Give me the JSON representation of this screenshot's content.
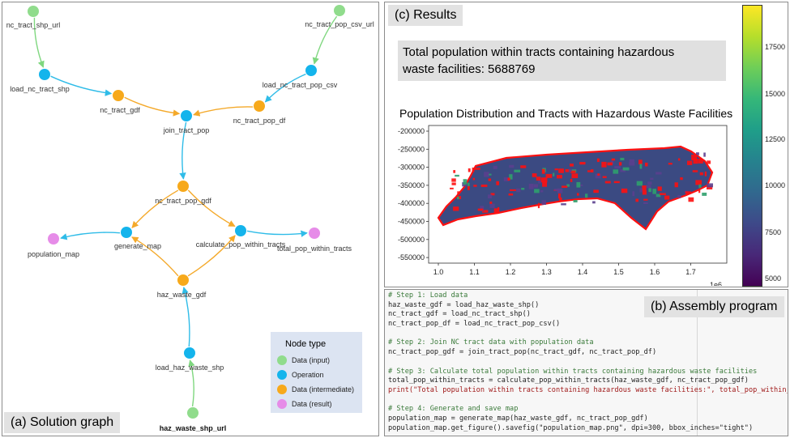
{
  "graph": {
    "caption": "(a) Solution graph",
    "nodes": [
      {
        "id": "nc_tract_shp_url",
        "label": "nc_tract_shp_url",
        "kind": "input"
      },
      {
        "id": "nc_tract_pop_csv_url",
        "label": "nc_tract_pop_csv_url",
        "kind": "input"
      },
      {
        "id": "load_nc_tract_shp",
        "label": "load_nc_tract_shp",
        "kind": "operation"
      },
      {
        "id": "load_nc_tract_pop_csv",
        "label": "load_nc_tract_pop_csv",
        "kind": "operation"
      },
      {
        "id": "nc_tract_gdf",
        "label": "nc_tract_gdf",
        "kind": "intermediate"
      },
      {
        "id": "nc_tract_pop_df",
        "label": "nc_tract_pop_df",
        "kind": "intermediate"
      },
      {
        "id": "join_tract_pop",
        "label": "join_tract_pop",
        "kind": "operation"
      },
      {
        "id": "nc_tract_pop_gdf",
        "label": "nc_tract_pop_gdf",
        "kind": "intermediate"
      },
      {
        "id": "generate_map",
        "label": "generate_map",
        "kind": "operation"
      },
      {
        "id": "calculate_pop_within_tracts",
        "label": "calculate_pop_within_tracts",
        "kind": "operation"
      },
      {
        "id": "population_map",
        "label": "population_map",
        "kind": "result"
      },
      {
        "id": "total_pop_within_tracts",
        "label": "total_pop_within_tracts",
        "kind": "result"
      },
      {
        "id": "haz_waste_gdf",
        "label": "haz_waste_gdf",
        "kind": "intermediate"
      },
      {
        "id": "load_haz_waste_shp",
        "label": "load_haz_waste_shp",
        "kind": "operation"
      },
      {
        "id": "haz_waste_shp_url",
        "label": "haz_waste_shp_url",
        "kind": "input"
      }
    ],
    "edges": [
      [
        "nc_tract_shp_url",
        "load_nc_tract_shp"
      ],
      [
        "nc_tract_pop_csv_url",
        "load_nc_tract_pop_csv"
      ],
      [
        "load_nc_tract_shp",
        "nc_tract_gdf"
      ],
      [
        "load_nc_tract_pop_csv",
        "nc_tract_pop_df"
      ],
      [
        "nc_tract_gdf",
        "join_tract_pop"
      ],
      [
        "nc_tract_pop_df",
        "join_tract_pop"
      ],
      [
        "join_tract_pop",
        "nc_tract_pop_gdf"
      ],
      [
        "nc_tract_pop_gdf",
        "generate_map"
      ],
      [
        "nc_tract_pop_gdf",
        "calculate_pop_within_tracts"
      ],
      [
        "generate_map",
        "population_map"
      ],
      [
        "calculate_pop_within_tracts",
        "total_pop_within_tracts"
      ],
      [
        "haz_waste_gdf",
        "generate_map"
      ],
      [
        "haz_waste_gdf",
        "calculate_pop_within_tracts"
      ],
      [
        "load_haz_waste_shp",
        "haz_waste_gdf"
      ],
      [
        "haz_waste_shp_url",
        "load_haz_waste_shp"
      ]
    ],
    "legend": {
      "title": "Node type",
      "items": [
        {
          "label": "Data (input)",
          "kind": "input"
        },
        {
          "label": "Operation",
          "kind": "operation"
        },
        {
          "label": "Data (intermediate)",
          "kind": "intermediate"
        },
        {
          "label": "Data (result)",
          "kind": "result"
        }
      ]
    },
    "colors": {
      "input": "#90dc8c",
      "operation": "#14b4ec",
      "intermediate": "#f7a91b",
      "result": "#e68ce8",
      "edge_input": "#7fd77f",
      "edge_operation": "#2fbce8",
      "edge_intermediate": "#f4a92a"
    }
  },
  "results": {
    "caption": "(c) Results",
    "summary_line1": "Total population within tracts containing hazardous",
    "summary_line2": "waste facilities: 5688769",
    "map_title": "Population Distribution and Tracts with Hazardous Waste Facilities",
    "y_ticks": [
      "-200000",
      "-250000",
      "-300000",
      "-350000",
      "-400000",
      "-450000",
      "-500000",
      "-550000"
    ],
    "x_ticks": [
      "1.0",
      "1.1",
      "1.2",
      "1.3",
      "1.4",
      "1.5",
      "1.6",
      "1.7"
    ],
    "x_offset": "1e6",
    "colorbar_ticks": [
      "17500",
      "15000",
      "12500",
      "10000",
      "7500",
      "5000"
    ],
    "colormap": "viridis",
    "colors": {
      "tract_fill": "#3b4a82",
      "highlight": "#ff1010",
      "accent_green": "#2fa06d"
    }
  },
  "program": {
    "caption": "(b) Assembly program",
    "lines": [
      {
        "type": "comment",
        "text": "# Step 1: Load data"
      },
      {
        "type": "code",
        "text": "haz_waste_gdf = load_haz_waste_shp()"
      },
      {
        "type": "code",
        "text": "nc_tract_gdf = load_nc_tract_shp()"
      },
      {
        "type": "code",
        "text": "nc_tract_pop_df = load_nc_tract_pop_csv()"
      },
      {
        "type": "blank",
        "text": ""
      },
      {
        "type": "comment",
        "text": "# Step 2: Join NC tract data with population data"
      },
      {
        "type": "code",
        "text": "nc_tract_pop_gdf = join_tract_pop(nc_tract_gdf, nc_tract_pop_df)"
      },
      {
        "type": "blank",
        "text": ""
      },
      {
        "type": "comment",
        "text": "# Step 3: Calculate total population within tracts containing hazardous waste facilities"
      },
      {
        "type": "code",
        "text": "total_pop_within_tracts = calculate_pop_within_tracts(haz_waste_gdf, nc_tract_pop_gdf)"
      },
      {
        "type": "print",
        "text": "print(\"Total population within tracts containing hazardous waste facilities:\", total_pop_within_tracts)"
      },
      {
        "type": "blank",
        "text": ""
      },
      {
        "type": "comment",
        "text": "# Step 4: Generate and save map"
      },
      {
        "type": "code",
        "text": "population_map = generate_map(haz_waste_gdf, nc_tract_pop_gdf)"
      },
      {
        "type": "code",
        "text": "population_map.get_figure().savefig(\"population_map.png\", dpi=300, bbox_inches=\"tight\")"
      }
    ]
  }
}
